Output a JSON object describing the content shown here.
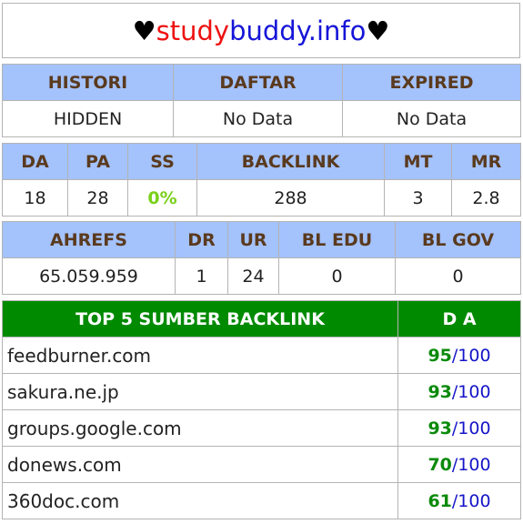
{
  "title": {
    "heart_left": "♥ ",
    "part1": "study",
    "part2": "buddy.info",
    "heart_right": " ♥"
  },
  "info": {
    "headers": [
      "HISTORI",
      "DAFTAR",
      "EXPIRED"
    ],
    "values": [
      "HIDDEN",
      "No Data",
      "No Data"
    ]
  },
  "metrics": {
    "headers": [
      "DA",
      "PA",
      "SS",
      "BACKLINK",
      "MT",
      "MR"
    ],
    "values": [
      "18",
      "28",
      "0%",
      "288",
      "3",
      "2.8"
    ]
  },
  "ahrefs": {
    "headers": [
      "AHREFS",
      "DR",
      "UR",
      "BL EDU",
      "BL GOV"
    ],
    "values": [
      "65.059.959",
      "1",
      "24",
      "0",
      "0"
    ]
  },
  "top": {
    "headers": [
      "TOP 5 SUMBER BACKLINK",
      "D A"
    ],
    "max": "100",
    "slash": "/",
    "rows": [
      {
        "site": "feedburner.com",
        "da": "95"
      },
      {
        "site": "sakura.ne.jp",
        "da": "93"
      },
      {
        "site": "groups.google.com",
        "da": "93"
      },
      {
        "site": "donews.com",
        "da": "70"
      },
      {
        "site": "360doc.com",
        "da": "61"
      }
    ]
  }
}
